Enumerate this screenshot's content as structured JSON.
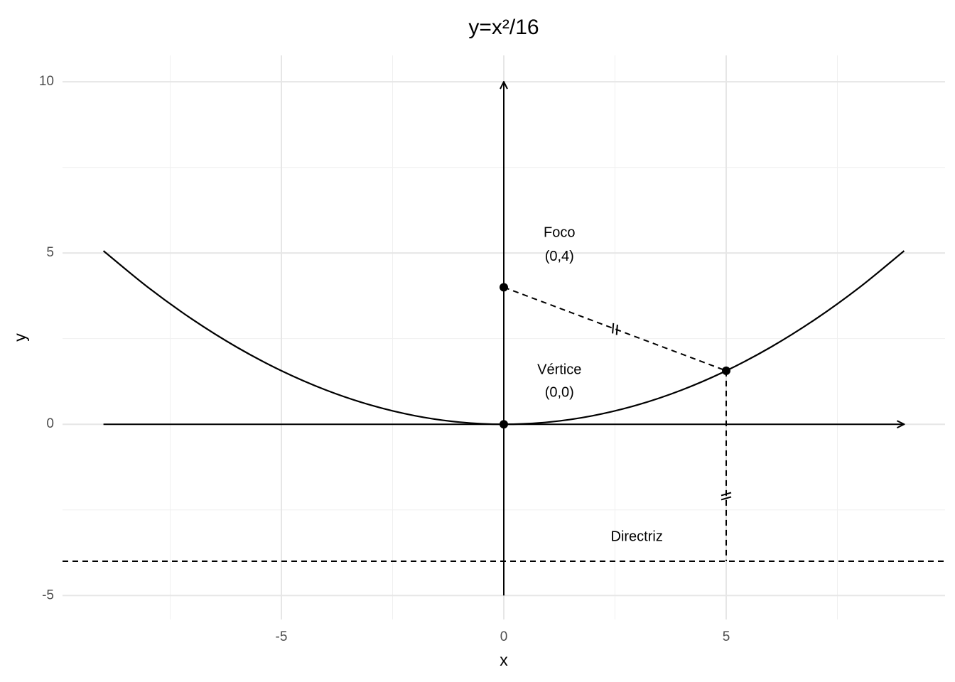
{
  "chart_data": {
    "type": "line",
    "title": "y=x²/16",
    "x_label": "x",
    "y_label": "y",
    "xlim": [
      -9.92,
      9.92
    ],
    "ylim": [
      -5.7,
      10.77
    ],
    "xticks": [
      -5,
      0,
      5
    ],
    "yticks": [
      -5,
      0,
      5,
      10
    ],
    "xminor": [
      -7.5,
      -2.5,
      2.5,
      7.5
    ],
    "yminor": [
      -2.5,
      2.5,
      7.5
    ],
    "grid": true,
    "color": "#000000",
    "curve": {
      "x": [
        -9,
        -8,
        -7,
        -6,
        -5,
        -4,
        -3,
        -2,
        -1,
        0,
        1,
        2,
        3,
        4,
        5,
        6,
        7,
        8,
        9
      ],
      "y": [
        5.0625,
        4,
        3.0625,
        2.25,
        1.5625,
        1,
        0.5625,
        0.25,
        0.0625,
        0,
        0.0625,
        0.25,
        0.5625,
        1,
        1.5625,
        2.25,
        3.0625,
        4,
        5.0625
      ]
    },
    "x_axis_arrow": {
      "x": [
        -9,
        9
      ],
      "y": 0
    },
    "y_axis_arrow": {
      "y": [
        -5,
        10
      ],
      "x": 0
    },
    "points": [
      {
        "x": 0,
        "y": 4
      },
      {
        "x": 0,
        "y": 0
      },
      {
        "x": 5,
        "y": 1.5625
      }
    ],
    "segments": [
      {
        "x1": 0,
        "y1": 4,
        "x2": 5,
        "y2": 1.5625
      },
      {
        "x1": 5,
        "y1": 1.5625,
        "x2": 5,
        "y2": -4
      }
    ],
    "equal_marks": [
      {
        "segment": 0,
        "x": 2.5,
        "y": 2.78
      },
      {
        "segment": 1,
        "x": 5,
        "y": -2.1
      }
    ],
    "directrix": -4,
    "annotations": [
      {
        "text": "Foco",
        "x": 1.25,
        "y": 5.58
      },
      {
        "text": "(0,4)",
        "x": 1.25,
        "y": 4.88
      },
      {
        "text": "Vértice",
        "x": 1.25,
        "y": 1.58
      },
      {
        "text": "(0,0)",
        "x": 1.25,
        "y": 0.91
      },
      {
        "text": "Directriz",
        "x": 2.99,
        "y": -3.3
      }
    ]
  }
}
